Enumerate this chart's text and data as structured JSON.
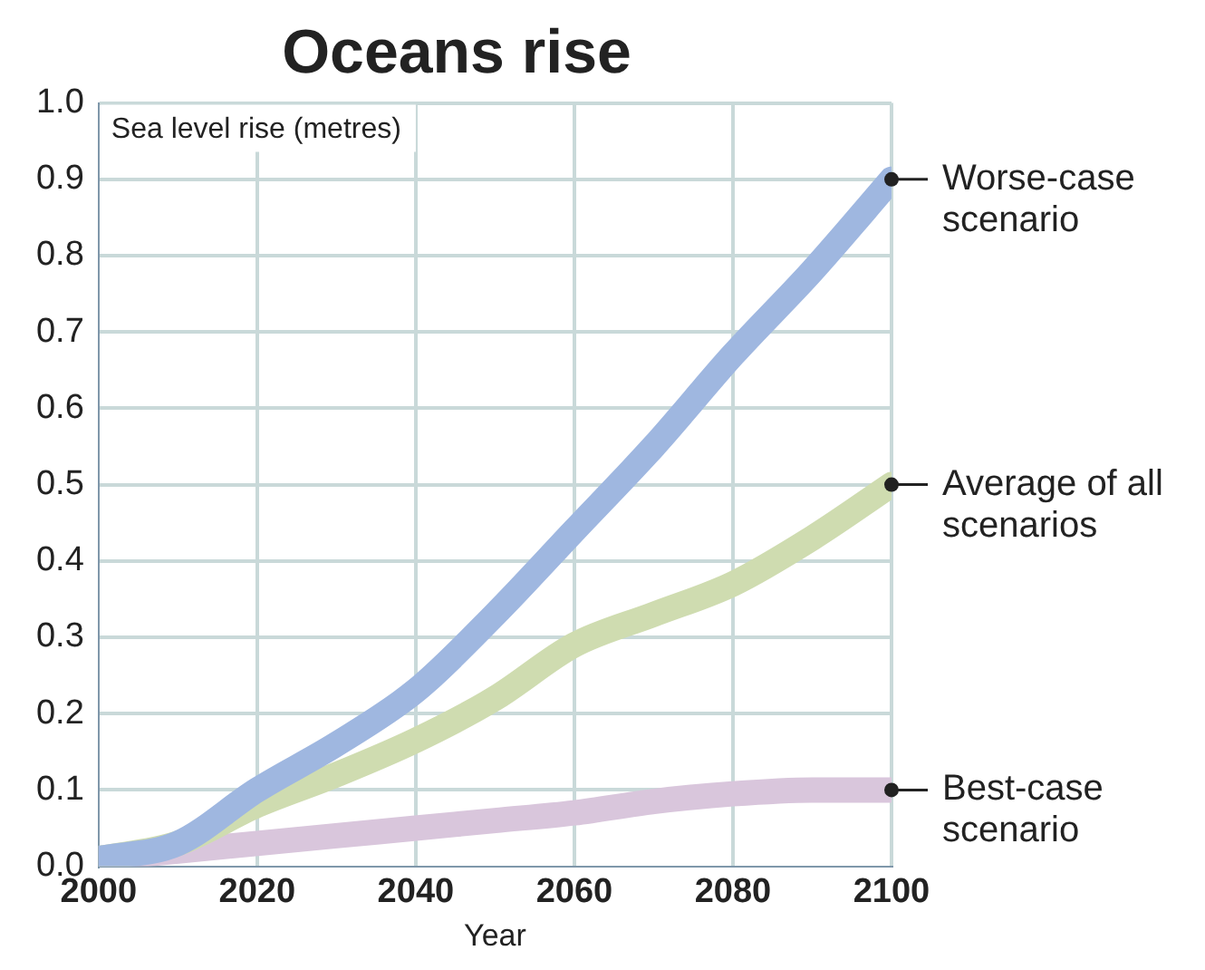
{
  "chart_data": {
    "type": "line",
    "title": "Oceans rise",
    "ylabel": "Sea level rise (metres)",
    "xlabel": "Year",
    "x": [
      2000,
      2010,
      2020,
      2030,
      2040,
      2050,
      2060,
      2070,
      2080,
      2090,
      2100
    ],
    "series": [
      {
        "name": "Worse-case scenario",
        "color": "#9fb7e0",
        "values": [
          0.01,
          0.03,
          0.1,
          0.16,
          0.23,
          0.33,
          0.44,
          0.55,
          0.67,
          0.78,
          0.9
        ]
      },
      {
        "name": "Average of all scenarios",
        "color": "#cfdcb0",
        "values": [
          0.01,
          0.03,
          0.08,
          0.12,
          0.165,
          0.22,
          0.29,
          0.33,
          0.37,
          0.43,
          0.5
        ]
      },
      {
        "name": "Best-case scenario",
        "color": "#d9c6dc",
        "values": [
          0.01,
          0.02,
          0.03,
          0.04,
          0.05,
          0.06,
          0.07,
          0.085,
          0.095,
          0.1,
          0.1
        ]
      }
    ],
    "xlim": [
      2000,
      2100
    ],
    "xticks": [
      2000,
      2020,
      2040,
      2060,
      2080,
      2100
    ],
    "ylim": [
      0,
      1
    ],
    "yticks": [
      {
        "value": 0,
        "label": "0.0"
      },
      0.1,
      0.2,
      0.3,
      0.4,
      0.5,
      0.6,
      0.7,
      0.8,
      0.9,
      {
        "value": 1,
        "label": "1.0"
      }
    ],
    "grid": true,
    "legend": "right",
    "marker": "none",
    "line_style": "solid"
  }
}
